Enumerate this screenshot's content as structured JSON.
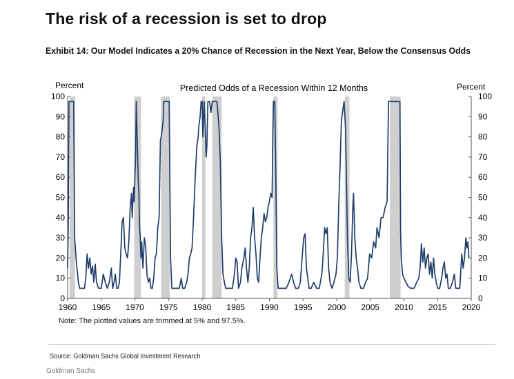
{
  "headline": "The risk of a recession is set to drop",
  "exhibit_title": "Exhibit 14: Our Model Indicates a 20% Chance of Recession in the Next Year, Below the Consensus Odds",
  "note": "Note: The plotted values are trimmed at 5% and 97.5%.",
  "source": "Source: Goldman Sachs Global Investment Research",
  "footer": "Goldman Sachs",
  "colors": {
    "line": "#1f3d6b",
    "recession_shade": "#cfcfcf"
  },
  "chart_data": {
    "type": "line",
    "title": "Predicted Odds of a Recession  Within 12 Months",
    "ylabel_left": "Percent",
    "ylabel_right": "Percent",
    "xlim": [
      1960,
      2020
    ],
    "ylim": [
      0,
      100
    ],
    "x_ticks": [
      "1960",
      "1965",
      "1970",
      "1975",
      "1980",
      "1985",
      "1990",
      "1995",
      "2000",
      "2005",
      "2010",
      "2015",
      "2020"
    ],
    "y_ticks": [
      "0",
      "10",
      "20",
      "30",
      "40",
      "50",
      "60",
      "70",
      "80",
      "90",
      "100"
    ],
    "legend": "none",
    "grid": false,
    "recessions": [
      [
        1960.3,
        1961.1
      ],
      [
        1969.9,
        1970.9
      ],
      [
        1973.9,
        1975.2
      ],
      [
        1980.0,
        1980.5
      ],
      [
        1981.5,
        1982.9
      ],
      [
        1990.6,
        1991.2
      ],
      [
        2001.2,
        2001.9
      ],
      [
        2007.9,
        2009.5
      ]
    ],
    "series": [
      {
        "values": [
          [
            1960.0,
            15
          ],
          [
            1960.1,
            38
          ],
          [
            1960.2,
            97.5
          ],
          [
            1960.6,
            97.5
          ],
          [
            1960.9,
            97.5
          ],
          [
            1961.05,
            30
          ],
          [
            1961.3,
            18
          ],
          [
            1961.6,
            8
          ],
          [
            1961.8,
            5
          ],
          [
            1962.2,
            5
          ],
          [
            1962.5,
            5
          ],
          [
            1962.7,
            10
          ],
          [
            1962.9,
            22
          ],
          [
            1963.1,
            15
          ],
          [
            1963.3,
            20
          ],
          [
            1963.5,
            12
          ],
          [
            1963.7,
            16
          ],
          [
            1963.9,
            8
          ],
          [
            1964.1,
            17
          ],
          [
            1964.3,
            8
          ],
          [
            1964.6,
            5
          ],
          [
            1965.0,
            5
          ],
          [
            1965.3,
            12
          ],
          [
            1965.6,
            8
          ],
          [
            1965.9,
            5
          ],
          [
            1966.2,
            8
          ],
          [
            1966.5,
            15
          ],
          [
            1966.7,
            5
          ],
          [
            1966.9,
            8
          ],
          [
            1967.1,
            12
          ],
          [
            1967.3,
            5
          ],
          [
            1967.5,
            5
          ],
          [
            1967.7,
            8
          ],
          [
            1967.9,
            22
          ],
          [
            1968.1,
            38
          ],
          [
            1968.3,
            40
          ],
          [
            1968.5,
            25
          ],
          [
            1968.7,
            22
          ],
          [
            1968.9,
            20
          ],
          [
            1969.1,
            28
          ],
          [
            1969.3,
            45
          ],
          [
            1969.5,
            52
          ],
          [
            1969.6,
            40
          ],
          [
            1969.8,
            55
          ],
          [
            1969.9,
            48
          ],
          [
            1970.0,
            60
          ],
          [
            1970.1,
            70
          ],
          [
            1970.2,
            97.5
          ],
          [
            1970.35,
            78
          ],
          [
            1970.5,
            58
          ],
          [
            1970.6,
            52
          ],
          [
            1970.7,
            35
          ],
          [
            1970.8,
            30
          ],
          [
            1970.9,
            20
          ],
          [
            1971.0,
            28
          ],
          [
            1971.2,
            15
          ],
          [
            1971.4,
            30
          ],
          [
            1971.6,
            26
          ],
          [
            1971.8,
            12
          ],
          [
            1972.0,
            8
          ],
          [
            1972.2,
            10
          ],
          [
            1972.4,
            5
          ],
          [
            1972.6,
            5
          ],
          [
            1972.8,
            10
          ],
          [
            1973.0,
            20
          ],
          [
            1973.2,
            22
          ],
          [
            1973.4,
            35
          ],
          [
            1973.6,
            40
          ],
          [
            1973.8,
            78
          ],
          [
            1974.0,
            82
          ],
          [
            1974.2,
            88
          ],
          [
            1974.3,
            97.5
          ],
          [
            1974.6,
            97.5
          ],
          [
            1974.9,
            97.5
          ],
          [
            1975.1,
            97.5
          ],
          [
            1975.3,
            20
          ],
          [
            1975.5,
            5
          ],
          [
            1975.8,
            5
          ],
          [
            1976.2,
            5
          ],
          [
            1976.6,
            5
          ],
          [
            1976.9,
            10
          ],
          [
            1977.1,
            5
          ],
          [
            1977.4,
            5
          ],
          [
            1977.7,
            8
          ],
          [
            1977.9,
            12
          ],
          [
            1978.1,
            20
          ],
          [
            1978.3,
            22
          ],
          [
            1978.5,
            25
          ],
          [
            1978.7,
            38
          ],
          [
            1978.9,
            55
          ],
          [
            1979.0,
            62
          ],
          [
            1979.2,
            75
          ],
          [
            1979.4,
            80
          ],
          [
            1979.5,
            85
          ],
          [
            1979.7,
            90
          ],
          [
            1979.85,
            97.5
          ],
          [
            1980.0,
            97.5
          ],
          [
            1980.1,
            80
          ],
          [
            1980.3,
            97.5
          ],
          [
            1980.45,
            85
          ],
          [
            1980.6,
            70
          ],
          [
            1980.7,
            75
          ],
          [
            1980.85,
            97.5
          ],
          [
            1981.1,
            97.5
          ],
          [
            1981.3,
            92
          ],
          [
            1981.5,
            97.5
          ],
          [
            1981.9,
            97.5
          ],
          [
            1982.2,
            97.5
          ],
          [
            1982.5,
            85
          ],
          [
            1982.7,
            68
          ],
          [
            1982.9,
            30
          ],
          [
            1983.1,
            12
          ],
          [
            1983.3,
            8
          ],
          [
            1983.5,
            5
          ],
          [
            1984.0,
            5
          ],
          [
            1984.5,
            5
          ],
          [
            1984.8,
            12
          ],
          [
            1985.0,
            20
          ],
          [
            1985.2,
            18
          ],
          [
            1985.4,
            5
          ],
          [
            1985.7,
            8
          ],
          [
            1985.9,
            15
          ],
          [
            1986.2,
            20
          ],
          [
            1986.4,
            25
          ],
          [
            1986.6,
            15
          ],
          [
            1986.8,
            8
          ],
          [
            1987.0,
            15
          ],
          [
            1987.2,
            30
          ],
          [
            1987.4,
            35
          ],
          [
            1987.6,
            45
          ],
          [
            1987.8,
            30
          ],
          [
            1988.0,
            22
          ],
          [
            1988.2,
            10
          ],
          [
            1988.4,
            8
          ],
          [
            1988.6,
            20
          ],
          [
            1988.8,
            30
          ],
          [
            1989.0,
            35
          ],
          [
            1989.2,
            42
          ],
          [
            1989.4,
            38
          ],
          [
            1989.6,
            40
          ],
          [
            1989.8,
            45
          ],
          [
            1990.0,
            48
          ],
          [
            1990.2,
            52
          ],
          [
            1990.4,
            50
          ],
          [
            1990.5,
            80
          ],
          [
            1990.6,
            97.5
          ],
          [
            1990.8,
            97.5
          ],
          [
            1990.95,
            60
          ],
          [
            1991.1,
            15
          ],
          [
            1991.3,
            5
          ],
          [
            1991.7,
            5
          ],
          [
            1992.0,
            5
          ],
          [
            1992.5,
            5
          ],
          [
            1992.9,
            8
          ],
          [
            1993.3,
            12
          ],
          [
            1993.6,
            8
          ],
          [
            1993.9,
            5
          ],
          [
            1994.3,
            5
          ],
          [
            1994.6,
            8
          ],
          [
            1994.9,
            22
          ],
          [
            1995.1,
            30
          ],
          [
            1995.3,
            32
          ],
          [
            1995.5,
            15
          ],
          [
            1995.7,
            10
          ],
          [
            1995.9,
            5
          ],
          [
            1996.2,
            5
          ],
          [
            1996.6,
            8
          ],
          [
            1997.0,
            5
          ],
          [
            1997.4,
            5
          ],
          [
            1997.8,
            12
          ],
          [
            1998.0,
            22
          ],
          [
            1998.2,
            35
          ],
          [
            1998.4,
            32
          ],
          [
            1998.6,
            35
          ],
          [
            1998.8,
            15
          ],
          [
            1999.0,
            8
          ],
          [
            1999.3,
            5
          ],
          [
            1999.6,
            8
          ],
          [
            1999.9,
            12
          ],
          [
            2000.1,
            20
          ],
          [
            2000.3,
            45
          ],
          [
            2000.5,
            65
          ],
          [
            2000.7,
            88
          ],
          [
            2000.9,
            93
          ],
          [
            2001.1,
            97.5
          ],
          [
            2001.3,
            85
          ],
          [
            2001.45,
            60
          ],
          [
            2001.6,
            30
          ],
          [
            2001.8,
            10
          ],
          [
            2002.0,
            8
          ],
          [
            2002.2,
            22
          ],
          [
            2002.4,
            45
          ],
          [
            2002.5,
            52
          ],
          [
            2002.7,
            30
          ],
          [
            2002.9,
            20
          ],
          [
            2003.1,
            15
          ],
          [
            2003.3,
            8
          ],
          [
            2003.6,
            5
          ],
          [
            2004.0,
            5
          ],
          [
            2004.3,
            8
          ],
          [
            2004.6,
            10
          ],
          [
            2004.9,
            22
          ],
          [
            2005.2,
            20
          ],
          [
            2005.5,
            28
          ],
          [
            2005.8,
            25
          ],
          [
            2006.0,
            35
          ],
          [
            2006.3,
            30
          ],
          [
            2006.6,
            40
          ],
          [
            2006.9,
            40
          ],
          [
            2007.2,
            45
          ],
          [
            2007.5,
            48
          ],
          [
            2007.7,
            97.5
          ],
          [
            2008.0,
            97.5
          ],
          [
            2008.5,
            97.5
          ],
          [
            2009.0,
            97.5
          ],
          [
            2009.4,
            97.5
          ],
          [
            2009.5,
            33
          ],
          [
            2009.6,
            20
          ],
          [
            2009.8,
            12
          ],
          [
            2010.0,
            10
          ],
          [
            2010.3,
            8
          ],
          [
            2010.6,
            6
          ],
          [
            2011.0,
            5
          ],
          [
            2011.5,
            5
          ],
          [
            2011.9,
            8
          ],
          [
            2012.2,
            10
          ],
          [
            2012.4,
            15
          ],
          [
            2012.6,
            27
          ],
          [
            2012.8,
            18
          ],
          [
            2013.0,
            25
          ],
          [
            2013.2,
            15
          ],
          [
            2013.4,
            20
          ],
          [
            2013.6,
            22
          ],
          [
            2013.8,
            12
          ],
          [
            2014.0,
            18
          ],
          [
            2014.2,
            10
          ],
          [
            2014.4,
            20
          ],
          [
            2014.6,
            12
          ],
          [
            2014.8,
            8
          ],
          [
            2015.0,
            5
          ],
          [
            2015.3,
            5
          ],
          [
            2015.6,
            10
          ],
          [
            2015.8,
            15
          ],
          [
            2016.0,
            18
          ],
          [
            2016.2,
            10
          ],
          [
            2016.4,
            12
          ],
          [
            2016.6,
            5
          ],
          [
            2016.9,
            5
          ],
          [
            2017.2,
            8
          ],
          [
            2017.5,
            12
          ],
          [
            2017.7,
            5
          ],
          [
            2018.0,
            5
          ],
          [
            2018.3,
            5
          ],
          [
            2018.6,
            22
          ],
          [
            2018.8,
            15
          ],
          [
            2019.0,
            20
          ],
          [
            2019.2,
            30
          ],
          [
            2019.35,
            25
          ],
          [
            2019.5,
            28
          ],
          [
            2019.65,
            20
          ]
        ]
      }
    ]
  }
}
